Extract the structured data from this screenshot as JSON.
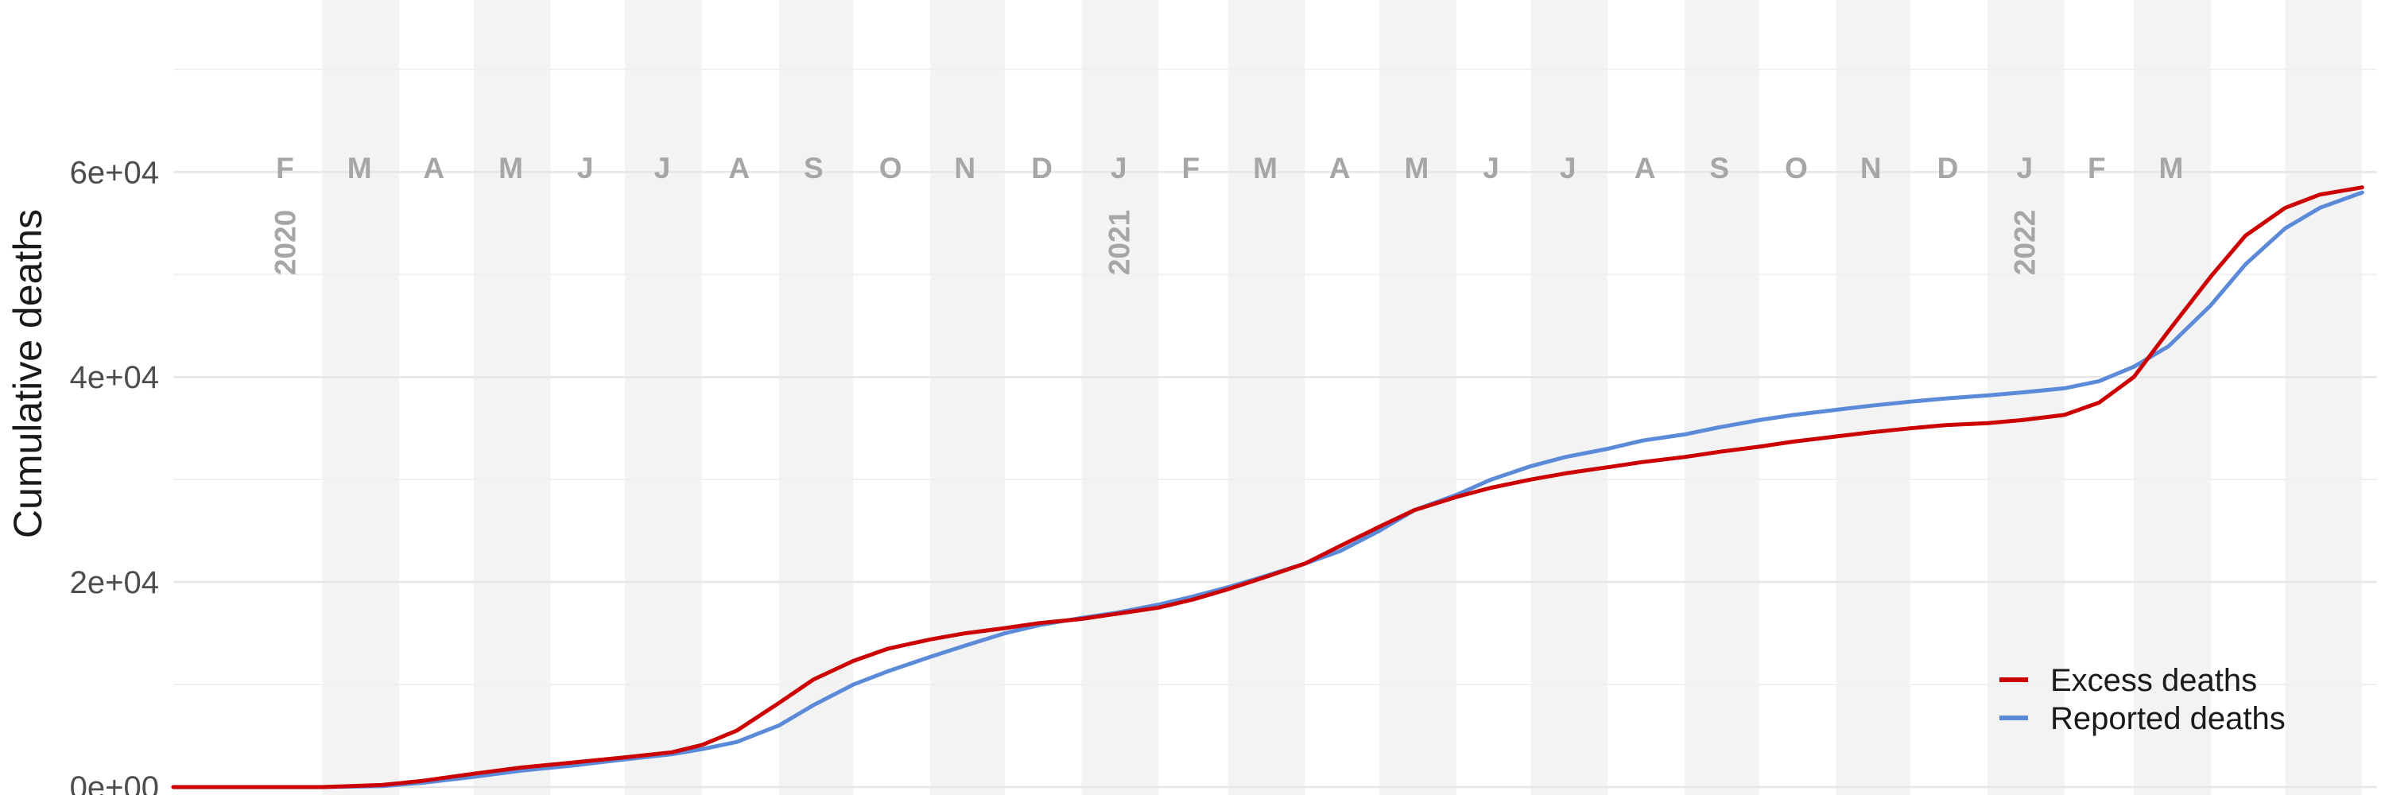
{
  "chart_data": {
    "type": "line",
    "title": "",
    "xlabel": "",
    "ylabel": "Cumulative deaths",
    "x_range": [
      "2020-01-01",
      "2022-06-07"
    ],
    "ylim": [
      0,
      76000
    ],
    "y_ticks": [
      0,
      20000,
      40000,
      60000
    ],
    "y_tick_labels": [
      "0e+00",
      "2e+04",
      "4e+04",
      "6e+04"
    ],
    "grid": true,
    "legend_position": "bottom-right",
    "month_labels": [
      {
        "label": "F",
        "date": "2020-02-15"
      },
      {
        "label": "M",
        "date": "2020-03-16"
      },
      {
        "label": "A",
        "date": "2020-04-15"
      },
      {
        "label": "M",
        "date": "2020-05-16"
      },
      {
        "label": "J",
        "date": "2020-06-15"
      },
      {
        "label": "J",
        "date": "2020-07-16"
      },
      {
        "label": "A",
        "date": "2020-08-16"
      },
      {
        "label": "S",
        "date": "2020-09-15"
      },
      {
        "label": "O",
        "date": "2020-10-16"
      },
      {
        "label": "N",
        "date": "2020-11-15"
      },
      {
        "label": "D",
        "date": "2020-12-16"
      },
      {
        "label": "J",
        "date": "2021-01-16"
      },
      {
        "label": "F",
        "date": "2021-02-14"
      },
      {
        "label": "M",
        "date": "2021-03-16"
      },
      {
        "label": "A",
        "date": "2021-04-15"
      },
      {
        "label": "M",
        "date": "2021-05-16"
      },
      {
        "label": "J",
        "date": "2021-06-15"
      },
      {
        "label": "J",
        "date": "2021-07-16"
      },
      {
        "label": "A",
        "date": "2021-08-16"
      },
      {
        "label": "S",
        "date": "2021-09-15"
      },
      {
        "label": "O",
        "date": "2021-10-16"
      },
      {
        "label": "N",
        "date": "2021-11-15"
      },
      {
        "label": "D",
        "date": "2021-12-16"
      },
      {
        "label": "J",
        "date": "2022-01-16"
      },
      {
        "label": "F",
        "date": "2022-02-14"
      },
      {
        "label": "M",
        "date": "2022-03-16"
      }
    ],
    "year_labels": [
      {
        "label": "2020",
        "date": "2020-02-15"
      },
      {
        "label": "2021",
        "date": "2021-01-16"
      },
      {
        "label": "2022",
        "date": "2022-01-16"
      }
    ],
    "shaded_months": [
      "2020-03",
      "2020-05",
      "2020-07",
      "2020-09",
      "2020-11",
      "2021-01",
      "2021-03",
      "2021-05",
      "2021-07",
      "2021-09",
      "2021-11",
      "2022-01",
      "2022-03",
      "2022-05"
    ],
    "series": [
      {
        "name": "Excess deaths",
        "color": "#cc0000",
        "points": [
          [
            "2020-01-01",
            0
          ],
          [
            "2020-02-01",
            0
          ],
          [
            "2020-03-01",
            0
          ],
          [
            "2020-03-25",
            200
          ],
          [
            "2020-04-10",
            600
          ],
          [
            "2020-05-01",
            1300
          ],
          [
            "2020-05-20",
            1900
          ],
          [
            "2020-06-10",
            2400
          ],
          [
            "2020-07-01",
            2900
          ],
          [
            "2020-07-20",
            3400
          ],
          [
            "2020-08-01",
            4100
          ],
          [
            "2020-08-15",
            5500
          ],
          [
            "2020-09-01",
            8200
          ],
          [
            "2020-09-15",
            10500
          ],
          [
            "2020-10-01",
            12300
          ],
          [
            "2020-10-15",
            13500
          ],
          [
            "2020-11-01",
            14400
          ],
          [
            "2020-11-15",
            15000
          ],
          [
            "2020-12-01",
            15500
          ],
          [
            "2020-12-15",
            16000
          ],
          [
            "2021-01-01",
            16400
          ],
          [
            "2021-01-15",
            16900
          ],
          [
            "2021-02-01",
            17500
          ],
          [
            "2021-02-15",
            18300
          ],
          [
            "2021-03-01",
            19300
          ],
          [
            "2021-03-15",
            20400
          ],
          [
            "2021-04-01",
            21800
          ],
          [
            "2021-04-15",
            23500
          ],
          [
            "2021-05-01",
            25400
          ],
          [
            "2021-05-15",
            27000
          ],
          [
            "2021-06-01",
            28300
          ],
          [
            "2021-06-15",
            29200
          ],
          [
            "2021-07-01",
            30000
          ],
          [
            "2021-07-15",
            30600
          ],
          [
            "2021-08-01",
            31200
          ],
          [
            "2021-08-15",
            31700
          ],
          [
            "2021-09-01",
            32200
          ],
          [
            "2021-09-15",
            32700
          ],
          [
            "2021-10-01",
            33200
          ],
          [
            "2021-10-15",
            33700
          ],
          [
            "2021-11-01",
            34200
          ],
          [
            "2021-11-15",
            34600
          ],
          [
            "2021-12-01",
            35000
          ],
          [
            "2021-12-15",
            35300
          ],
          [
            "2022-01-01",
            35500
          ],
          [
            "2022-01-15",
            35800
          ],
          [
            "2022-02-01",
            36300
          ],
          [
            "2022-02-15",
            37500
          ],
          [
            "2022-03-01",
            40000
          ],
          [
            "2022-03-15",
            44500
          ],
          [
            "2022-04-01",
            49800
          ],
          [
            "2022-04-15",
            53800
          ],
          [
            "2022-05-01",
            56500
          ],
          [
            "2022-05-15",
            57800
          ],
          [
            "2022-06-01",
            58500
          ]
        ]
      },
      {
        "name": "Reported deaths",
        "color": "#5b8ad8",
        "points": [
          [
            "2020-01-01",
            0
          ],
          [
            "2020-02-01",
            0
          ],
          [
            "2020-03-01",
            0
          ],
          [
            "2020-03-25",
            100
          ],
          [
            "2020-04-10",
            400
          ],
          [
            "2020-05-01",
            1000
          ],
          [
            "2020-05-20",
            1600
          ],
          [
            "2020-06-10",
            2100
          ],
          [
            "2020-07-01",
            2700
          ],
          [
            "2020-07-20",
            3200
          ],
          [
            "2020-08-01",
            3700
          ],
          [
            "2020-08-15",
            4400
          ],
          [
            "2020-09-01",
            6000
          ],
          [
            "2020-09-15",
            8000
          ],
          [
            "2020-10-01",
            10000
          ],
          [
            "2020-10-15",
            11300
          ],
          [
            "2020-11-01",
            12700
          ],
          [
            "2020-11-15",
            13800
          ],
          [
            "2020-12-01",
            15000
          ],
          [
            "2020-12-15",
            15800
          ],
          [
            "2021-01-01",
            16500
          ],
          [
            "2021-01-15",
            17000
          ],
          [
            "2021-02-01",
            17800
          ],
          [
            "2021-02-15",
            18600
          ],
          [
            "2021-03-01",
            19500
          ],
          [
            "2021-03-15",
            20500
          ],
          [
            "2021-04-01",
            21800
          ],
          [
            "2021-04-15",
            23000
          ],
          [
            "2021-05-01",
            25000
          ],
          [
            "2021-05-15",
            27000
          ],
          [
            "2021-06-01",
            28500
          ],
          [
            "2021-06-15",
            30000
          ],
          [
            "2021-07-01",
            31300
          ],
          [
            "2021-07-15",
            32200
          ],
          [
            "2021-08-01",
            33000
          ],
          [
            "2021-08-15",
            33800
          ],
          [
            "2021-09-01",
            34400
          ],
          [
            "2021-09-15",
            35100
          ],
          [
            "2021-10-01",
            35800
          ],
          [
            "2021-10-15",
            36300
          ],
          [
            "2021-11-01",
            36800
          ],
          [
            "2021-11-15",
            37200
          ],
          [
            "2021-12-01",
            37600
          ],
          [
            "2021-12-15",
            37900
          ],
          [
            "2022-01-01",
            38200
          ],
          [
            "2022-01-15",
            38500
          ],
          [
            "2022-02-01",
            38900
          ],
          [
            "2022-02-15",
            39600
          ],
          [
            "2022-03-01",
            41000
          ],
          [
            "2022-03-15",
            43000
          ],
          [
            "2022-04-01",
            47000
          ],
          [
            "2022-04-15",
            51000
          ],
          [
            "2022-05-01",
            54500
          ],
          [
            "2022-05-15",
            56500
          ],
          [
            "2022-06-01",
            58000
          ]
        ]
      }
    ]
  }
}
